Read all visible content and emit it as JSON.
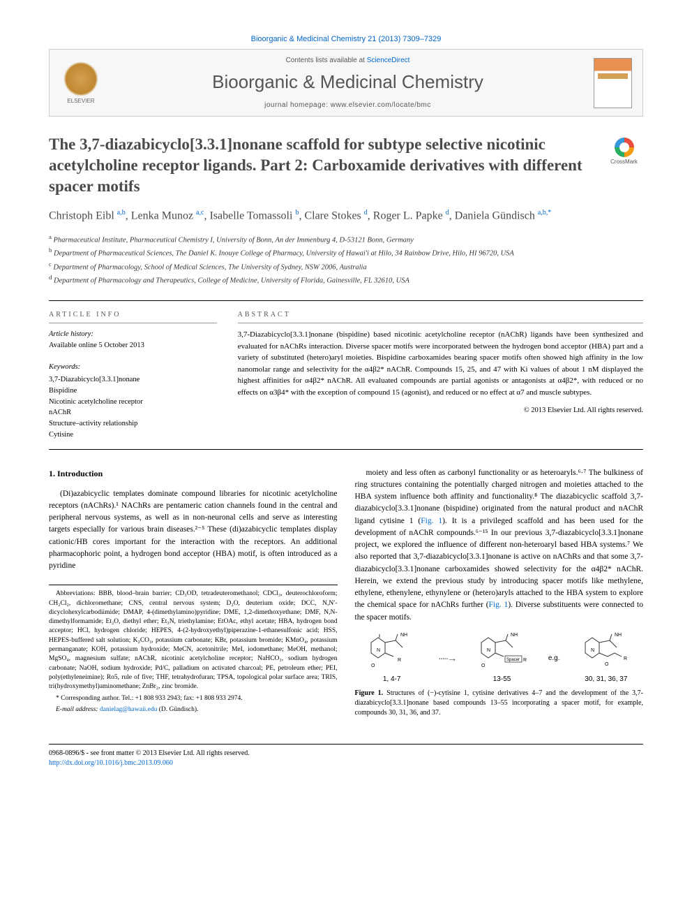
{
  "citation": "Bioorganic & Medicinal Chemistry 21 (2013) 7309–7329",
  "publisher_name": "ELSEVIER",
  "contents_text": "Contents lists available at ",
  "contents_link": "ScienceDirect",
  "journal_name": "Bioorganic & Medicinal Chemistry",
  "journal_homepage": "journal homepage: www.elsevier.com/locate/bmc",
  "crossmark_label": "CrossMark",
  "title": "The 3,7-diazabicyclo[3.3.1]nonane scaffold for subtype selective nicotinic acetylcholine receptor ligands. Part 2: Carboxamide derivatives with different spacer motifs",
  "authors_html": "Christoph Eibl <sup>a,b</sup>, Lenka Munoz <sup>a,c</sup>, Isabelle Tomassoli <sup>b</sup>, Clare Stokes <sup>d</sup>, Roger L. Papke <sup>d</sup>, Daniela Gündisch <sup>a,b,*</sup>",
  "affiliations": [
    "a Pharmaceutical Institute, Pharmaceutical Chemistry I, University of Bonn, An der Immenburg 4, D-53121 Bonn, Germany",
    "b Department of Pharmaceutical Sciences, The Daniel K. Inouye College of Pharmacy, University of Hawai'i at Hilo, 34 Rainbow Drive, Hilo, HI 96720, USA",
    "c Department of Pharmacology, School of Medical Sciences, The University of Sydney, NSW 2006, Australia",
    "d Department of Pharmacology and Therapeutics, College of Medicine, University of Florida, Gainesville, FL 32610, USA"
  ],
  "info": {
    "header": "ARTICLE INFO",
    "history_label": "Article history:",
    "history_text": "Available online 5 October 2013",
    "keywords_label": "Keywords:",
    "keywords": [
      "3,7-Diazabicyclo[3.3.1]nonane",
      "Bispidine",
      "Nicotinic acetylcholine receptor",
      "nAChR",
      "Structure–activity relationship",
      "Cytisine"
    ]
  },
  "abstract": {
    "header": "ABSTRACT",
    "text": "3,7-Diazabicyclo[3.3.1]nonane (bispidine) based nicotinic acetylcholine receptor (nAChR) ligands have been synthesized and evaluated for nAChRs interaction. Diverse spacer motifs were incorporated between the hydrogen bond acceptor (HBA) part and a variety of substituted (hetero)aryl moieties. Bispidine carboxamides bearing spacer motifs often showed high affinity in the low nanomolar range and selectivity for the α4β2* nAChR. Compounds 15, 25, and 47 with Ki values of about 1 nM displayed the highest affinities for α4β2* nAChR. All evaluated compounds are partial agonists or antagonists at α4β2*, with reduced or no effects on α3β4* with the exception of compound 15 (agonist), and reduced or no effect at α7 and muscle subtypes.",
    "copyright": "© 2013 Elsevier Ltd. All rights reserved."
  },
  "section1": {
    "heading": "1. Introduction",
    "para1": "(Di)azabicyclic templates dominate compound libraries for nicotinic acetylcholine receptors (nAChRs).¹ NAChRs are pentameric cation channels found in the central and peripheral nervous systems, as well as in non-neuronal cells and serve as interesting targets especially for various brain diseases.²⁻⁵ These (di)azabicyclic templates display cationic/HB cores important for the interaction with the receptors. An additional pharmacophoric point, a hydrogen bond acceptor (HBA) motif, is often introduced as a pyridine",
    "para2_pre": "moiety and less often as carbonyl functionality or as heteroaryls.⁶·⁷ The bulkiness of ring structures containing the potentially charged nitrogen and moieties attached to the HBA system influence both affinity and functionality.⁸ The diazabicyclic scaffold 3,7-diazabicyclo[3.3.1]nonane (bispidine) originated from the natural product and nAChR ligand cytisine 1 (",
    "fig_link1": "Fig. 1",
    "para2_mid": "). It is a privileged scaffold and has been used for the development of nAChR compounds.⁶⁻¹⁵ In our previous 3,7-diazabicyclo[3.3.1]nonane project, we explored the influence of different non-heteroaryl based HBA systems.⁷ We also reported that 3,7-diazabicyclo[3.3.1]nonane is active on nAChRs and that some 3,7-diazabicyclo[3.3.1]nonane carboxamides showed selectivity for the α4β2* nAChR. Herein, we extend the previous study by introducing spacer motifs like methylene, ethylene, ethenylene, ethynylene or (hetero)aryls attached to the HBA system to explore the chemical space for nAChRs further (",
    "fig_link2": "Fig. 1",
    "para2_post": "). Diverse substituents were connected to the spacer motifs."
  },
  "figure1": {
    "struct_labels": [
      "1, 4-7",
      "13-55",
      "30, 31, 36, 37"
    ],
    "eg_text": "e.g.",
    "caption_bold": "Figure 1.",
    "caption": " Structures of (−)-cytisine 1, cytisine derivatives 4–7 and the development of the 3,7-diazabicyclo[3.3.1]nonane based compounds 13–55 incorporating a spacer motif, for example, compounds 30, 31, 36, and 37."
  },
  "abbreviations": "Abbreviations: BBB, blood–brain barrier; CD₃OD, tetradeuteromethanol; CDCl₃, deuterochloroform; CH₂Cl₂, dichloromethane; CNS, central nervous system; D₂O, deuterium oxide; DCC, N,N′-dicyclohexylcarbodiimide; DMAP, 4-(dimethylamino)pyridine; DME, 1,2-dimethoxyethane; DMF, N,N-dimethylformamide; Et₂O, diethyl ether; Et₃N, triethylamine; EtOAc, ethyl acetate; HBA, hydrogen bond acceptor; HCl, hydrogen chloride; HEPES, 4-(2-hydroxyethyl)piperazine-1-ethanesulfonic acid; HSS, HEPES-buffered salt solution; K₂CO₃, potassium carbonate; KBr, potassium bromide; KMnO₄, potassium permanganate; KOH, potassium hydroxide; MeCN, acetonitrile; MeI, iodomethane; MeOH, methanol; MgSO₄, magnesium sulfate; nAChR, nicotinic acetylcholine receptor; NaHCO₃, sodium hydrogen carbonate; NaOH, sodium hydroxide; Pd/C, palladium on activated charcoal; PE, petroleum ether; PEI, poly(ethyleneimine); Ro5, rule of five; THF, tetrahydrofuran; TPSA, topological polar surface area; TRIS, tri(hydroxymethyl)aminomethane; ZnBr₂, zinc bromide.",
  "corresponding": "* Corresponding author. Tel.: +1 808 933 2943; fax: +1 808 933 2974.",
  "email_label": "E-mail address: ",
  "email": "danielag@hawaii.edu",
  "email_name": " (D. Gündisch).",
  "footer": {
    "issn": "0968-0896/$ - see front matter © 2013 Elsevier Ltd. All rights reserved.",
    "doi": "http://dx.doi.org/10.1016/j.bmc.2013.09.060"
  },
  "style": {
    "link_color": "#0066cc",
    "text_color": "#000000",
    "heading_color": "#4a4a4a",
    "border_color": "#000000",
    "box_bg": "#f7f7f7",
    "font_serif": "Georgia, 'Times New Roman', serif",
    "font_sans": "Arial, sans-serif",
    "title_fontsize": 23,
    "journal_fontsize": 26,
    "body_fontsize": 11.5,
    "abstract_fontsize": 11,
    "footnote_fontsize": 9.5
  }
}
